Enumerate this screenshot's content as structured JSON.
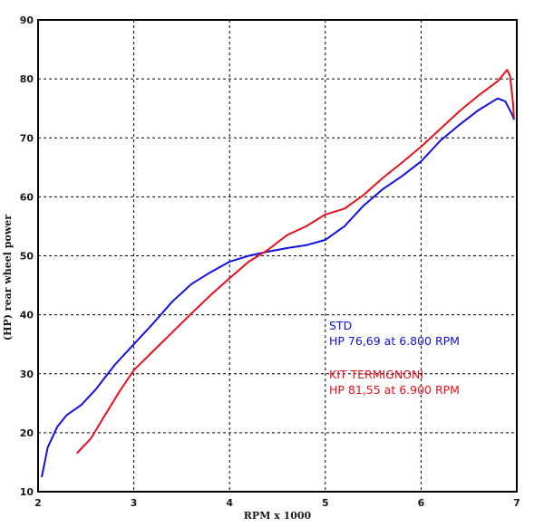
{
  "chart_data": {
    "type": "line",
    "xlabel": "RPM x 1000",
    "ylabel": "(HP) rear wheel power",
    "xlim": [
      2,
      7
    ],
    "ylim": [
      10,
      90
    ],
    "xticks": [
      2,
      3,
      4,
      5,
      6,
      7
    ],
    "yticks": [
      10,
      20,
      30,
      40,
      50,
      60,
      70,
      80,
      90
    ],
    "grid": true,
    "colors": {
      "std": "#1010e0",
      "kit": "#e8101a"
    },
    "series": [
      {
        "name": "STD",
        "points": [
          [
            2.04,
            12.6
          ],
          [
            2.1,
            17.5
          ],
          [
            2.2,
            21.0
          ],
          [
            2.3,
            23.0
          ],
          [
            2.45,
            24.7
          ],
          [
            2.6,
            27.3
          ],
          [
            2.8,
            31.5
          ],
          [
            3.0,
            35.0
          ],
          [
            3.2,
            38.5
          ],
          [
            3.4,
            42.2
          ],
          [
            3.6,
            45.2
          ],
          [
            3.8,
            47.2
          ],
          [
            4.0,
            49.0
          ],
          [
            4.2,
            50.0
          ],
          [
            4.4,
            50.7
          ],
          [
            4.6,
            51.3
          ],
          [
            4.8,
            51.8
          ],
          [
            5.0,
            52.7
          ],
          [
            5.2,
            55.0
          ],
          [
            5.4,
            58.5
          ],
          [
            5.6,
            61.3
          ],
          [
            5.8,
            63.5
          ],
          [
            6.0,
            66.0
          ],
          [
            6.2,
            69.5
          ],
          [
            6.4,
            72.2
          ],
          [
            6.6,
            74.7
          ],
          [
            6.8,
            76.69
          ],
          [
            6.88,
            76.2
          ],
          [
            6.95,
            74.0
          ],
          [
            6.97,
            73.2
          ]
        ]
      },
      {
        "name": "KIT TERMIGNONI",
        "points": [
          [
            2.41,
            16.6
          ],
          [
            2.55,
            19.0
          ],
          [
            2.7,
            23.0
          ],
          [
            2.85,
            27.0
          ],
          [
            3.0,
            30.6
          ],
          [
            3.2,
            33.8
          ],
          [
            3.4,
            37.0
          ],
          [
            3.6,
            40.2
          ],
          [
            3.8,
            43.3
          ],
          [
            4.0,
            46.2
          ],
          [
            4.2,
            49.0
          ],
          [
            4.4,
            51.0
          ],
          [
            4.6,
            53.5
          ],
          [
            4.8,
            55.0
          ],
          [
            5.0,
            57.0
          ],
          [
            5.2,
            58.0
          ],
          [
            5.4,
            60.3
          ],
          [
            5.6,
            63.2
          ],
          [
            5.8,
            65.8
          ],
          [
            6.0,
            68.5
          ],
          [
            6.2,
            71.5
          ],
          [
            6.4,
            74.5
          ],
          [
            6.6,
            77.2
          ],
          [
            6.8,
            79.6
          ],
          [
            6.9,
            81.55
          ],
          [
            6.93,
            80.5
          ],
          [
            6.96,
            76.0
          ],
          [
            6.97,
            73.5
          ]
        ]
      }
    ],
    "annotations": [
      {
        "series": "std",
        "lines": [
          "STD",
          "HP 76,69 at 6.800 RPM"
        ]
      },
      {
        "series": "kit",
        "lines": [
          "KIT TERMIGNONI",
          "HP 81,55 at 6.900 RPM"
        ]
      }
    ]
  }
}
